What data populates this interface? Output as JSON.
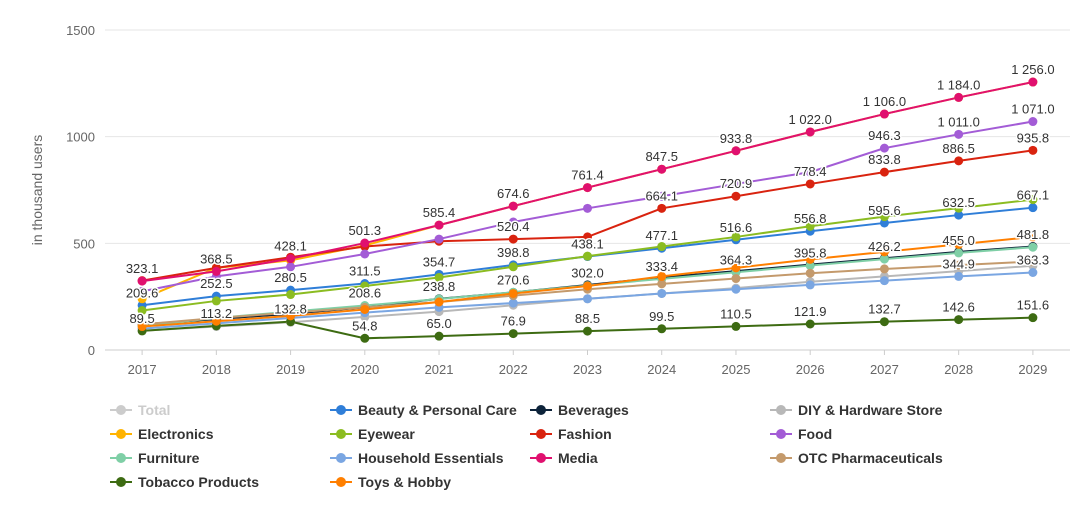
{
  "chart_data": {
    "type": "line",
    "ylabel": "in thousand users",
    "xlabel": "",
    "ylim": [
      0,
      1500
    ],
    "yticks": [
      0,
      500,
      1000,
      1500
    ],
    "x": [
      "2017",
      "2018",
      "2019",
      "2020",
      "2021",
      "2022",
      "2023",
      "2024",
      "2025",
      "2026",
      "2027",
      "2028",
      "2029"
    ],
    "grid": true,
    "legend_position": "bottom",
    "series": [
      {
        "name": "Total",
        "color": "#cccccc",
        "visible": false,
        "labels": false,
        "values": [
          null,
          null,
          null,
          null,
          null,
          null,
          null,
          null,
          null,
          null,
          null,
          null,
          null
        ]
      },
      {
        "name": "Beauty & Personal Care",
        "color": "#2f7ed8",
        "visible": true,
        "labels": false,
        "values": [
          209.6,
          252.5,
          280.5,
          311.5,
          354.7,
          398.8,
          438.1,
          477.1,
          516.6,
          556.8,
          595.6,
          632.5,
          667.1
        ]
      },
      {
        "name": "Beverages",
        "color": "#0d233a",
        "visible": true,
        "labels": false,
        "values": [
          120,
          145,
          170,
          200,
          240,
          270,
          305,
          340,
          370,
          400,
          430,
          460,
          485
        ]
      },
      {
        "name": "DIY & Hardware Store",
        "color": "#b8b8b8",
        "visible": true,
        "labels": false,
        "values": [
          90,
          110,
          130,
          155,
          180,
          210,
          240,
          265,
          290,
          320,
          345,
          370,
          395
        ]
      },
      {
        "name": "Electronics",
        "color": "#ffb300",
        "visible": true,
        "labels": true,
        "values": [
          240,
          385,
          420,
          490,
          585.4,
          674.6,
          761.4,
          847.5,
          933.8,
          1022.0,
          1106.0,
          1184.0,
          1256.0
        ]
      },
      {
        "name": "Eyewear",
        "color": "#8bbc21",
        "visible": true,
        "labels": false,
        "values": [
          185,
          230,
          260,
          300,
          340,
          390,
          440,
          485,
          530,
          580,
          625,
          665,
          705
        ]
      },
      {
        "name": "Fashion",
        "color": "#d9230f",
        "visible": true,
        "labels": false,
        "values": [
          325,
          385,
          435,
          485,
          510,
          520,
          530,
          664.1,
          720.9,
          778.4,
          833.8,
          886.5,
          935.8
        ]
      },
      {
        "name": "Food",
        "color": "#a35cd6",
        "visible": true,
        "labels": true,
        "values": [
          275,
          345,
          390,
          450,
          520,
          600,
          664.1,
          720.9,
          778.4,
          833.8,
          946.3,
          1011.0,
          1071.0
        ]
      },
      {
        "name": "Furniture",
        "color": "#7fcfa6",
        "visible": true,
        "labels": true,
        "values": [
          113.2,
          150,
          180,
          208.6,
          238.8,
          270.6,
          302.0,
          333.4,
          364.3,
          395.8,
          426.2,
          455.0,
          481.8
        ]
      },
      {
        "name": "Household Essentials",
        "color": "#7aa6e2",
        "visible": true,
        "labels": false,
        "values": [
          100,
          125,
          150,
          175,
          200,
          220,
          240,
          265,
          285,
          305,
          325,
          345,
          363.3
        ]
      },
      {
        "name": "Media",
        "color": "#e0106f",
        "visible": true,
        "labels": true,
        "values": [
          323.1,
          368.5,
          428.1,
          501.3,
          585.4,
          674.6,
          761.4,
          847.5,
          933.8,
          1022.0,
          1106.0,
          1184.0,
          1256.0
        ]
      },
      {
        "name": "OTC Pharmaceuticals",
        "color": "#c49a6c",
        "visible": true,
        "labels": false,
        "values": [
          120,
          150,
          175,
          200,
          225,
          255,
          285,
          310,
          335,
          360,
          380,
          398,
          415
        ]
      },
      {
        "name": "Tobacco Products",
        "color": "#3d6b12",
        "visible": true,
        "labels": true,
        "values": [
          89.5,
          113.2,
          132.8,
          54.8,
          65.0,
          76.9,
          88.5,
          99.5,
          110.5,
          121.9,
          132.7,
          142.6,
          151.6
        ]
      },
      {
        "name": "Toys & Hobby",
        "color": "#ff7f00",
        "visible": true,
        "labels": false,
        "values": [
          110,
          135,
          160,
          190,
          225,
          265,
          300,
          345,
          385,
          425,
          460,
          495,
          530
        ]
      }
    ],
    "data_labels": [
      {
        "x": "2017",
        "text": "323.1",
        "y": 323.1,
        "color": "#e0106f"
      },
      {
        "x": "2018",
        "text": "368.5",
        "y": 368.5,
        "color": "#e0106f"
      },
      {
        "x": "2019",
        "text": "428.1",
        "y": 428.1,
        "color": "#e0106f"
      },
      {
        "x": "2020",
        "text": "501.3",
        "y": 501.3,
        "color": "#e0106f"
      },
      {
        "x": "2021",
        "text": "585.4",
        "y": 585.4,
        "color": "#e0106f"
      },
      {
        "x": "2022",
        "text": "674.6",
        "y": 674.6,
        "color": "#e0106f"
      },
      {
        "x": "2023",
        "text": "761.4",
        "y": 761.4,
        "color": "#e0106f"
      },
      {
        "x": "2024",
        "text": "847.5",
        "y": 847.5,
        "color": "#e0106f"
      },
      {
        "x": "2025",
        "text": "933.8",
        "y": 933.8,
        "color": "#e0106f"
      },
      {
        "x": "2026",
        "text": "1 022.0",
        "y": 1022.0,
        "color": "#e0106f"
      },
      {
        "x": "2027",
        "text": "1 106.0",
        "y": 1106.0,
        "color": "#e0106f"
      },
      {
        "x": "2028",
        "text": "1 184.0",
        "y": 1184.0,
        "color": "#e0106f"
      },
      {
        "x": "2029",
        "text": "1 256.0",
        "y": 1256.0,
        "color": "#e0106f"
      },
      {
        "x": "2017",
        "text": "209.6",
        "y": 209.6,
        "color": "#2f7ed8"
      },
      {
        "x": "2018",
        "text": "252.5",
        "y": 252.5,
        "color": "#2f7ed8"
      },
      {
        "x": "2019",
        "text": "280.5",
        "y": 280.5,
        "color": "#2f7ed8"
      },
      {
        "x": "2020",
        "text": "311.5",
        "y": 311.5,
        "color": "#2f7ed8"
      },
      {
        "x": "2021",
        "text": "354.7",
        "y": 354.7,
        "color": "#2f7ed8"
      },
      {
        "x": "2022",
        "text": "398.8",
        "y": 398.8,
        "color": "#2f7ed8"
      },
      {
        "x": "2023",
        "text": "438.1",
        "y": 438.1,
        "color": "#2f7ed8"
      },
      {
        "x": "2024",
        "text": "477.1",
        "y": 477.1,
        "color": "#2f7ed8"
      },
      {
        "x": "2025",
        "text": "516.6",
        "y": 516.6,
        "color": "#2f7ed8"
      },
      {
        "x": "2026",
        "text": "556.8",
        "y": 556.8,
        "color": "#2f7ed8"
      },
      {
        "x": "2027",
        "text": "595.6",
        "y": 595.6,
        "color": "#2f7ed8"
      },
      {
        "x": "2028",
        "text": "632.5",
        "y": 632.5,
        "color": "#2f7ed8"
      },
      {
        "x": "2029",
        "text": "667.1",
        "y": 667.1,
        "color": "#2f7ed8"
      },
      {
        "x": "2022",
        "text": "520.4",
        "y": 520.4,
        "color": "#a35cd6"
      },
      {
        "x": "2024",
        "text": "664.1",
        "y": 664.1,
        "color": "#a35cd6"
      },
      {
        "x": "2025",
        "text": "720.9",
        "y": 720.9,
        "color": "#a35cd6"
      },
      {
        "x": "2026",
        "text": "778.4",
        "y": 778.4,
        "color": "#a35cd6"
      },
      {
        "x": "2027",
        "text": "833.8",
        "y": 833.8,
        "color": "#a35cd6"
      },
      {
        "x": "2027",
        "text": "946.3",
        "y": 946.3,
        "color": "#a35cd6"
      },
      {
        "x": "2028",
        "text": "886.5",
        "y": 886.5,
        "color": "#a35cd6"
      },
      {
        "x": "2028",
        "text": "1 011.0",
        "y": 1011.0,
        "color": "#a35cd6"
      },
      {
        "x": "2029",
        "text": "935.8",
        "y": 935.8,
        "color": "#a35cd6"
      },
      {
        "x": "2029",
        "text": "1 071.0",
        "y": 1071.0,
        "color": "#a35cd6"
      },
      {
        "x": "2017",
        "text": "89.5",
        "y": 89.5,
        "color": "#3d6b12"
      },
      {
        "x": "2018",
        "text": "113.2",
        "y": 113.2,
        "color": "#3d6b12"
      },
      {
        "x": "2019",
        "text": "132.8",
        "y": 132.8,
        "color": "#3d6b12"
      },
      {
        "x": "2020",
        "text": "208.6",
        "y": 208.6,
        "color": "#7fcfa6"
      },
      {
        "x": "2020",
        "text": "54.8",
        "y": 54.8,
        "color": "#3d6b12"
      },
      {
        "x": "2021",
        "text": "238.8",
        "y": 238.8,
        "color": "#7fcfa6"
      },
      {
        "x": "2021",
        "text": "65.0",
        "y": 65.0,
        "color": "#3d6b12"
      },
      {
        "x": "2022",
        "text": "270.6",
        "y": 270.6,
        "color": "#7fcfa6"
      },
      {
        "x": "2022",
        "text": "76.9",
        "y": 76.9,
        "color": "#3d6b12"
      },
      {
        "x": "2023",
        "text": "302.0",
        "y": 302.0,
        "color": "#7fcfa6"
      },
      {
        "x": "2023",
        "text": "88.5",
        "y": 88.5,
        "color": "#3d6b12"
      },
      {
        "x": "2024",
        "text": "333.4",
        "y": 333.4,
        "color": "#7fcfa6"
      },
      {
        "x": "2024",
        "text": "99.5",
        "y": 99.5,
        "color": "#3d6b12"
      },
      {
        "x": "2025",
        "text": "364.3",
        "y": 364.3,
        "color": "#7fcfa6"
      },
      {
        "x": "2025",
        "text": "110.5",
        "y": 110.5,
        "color": "#3d6b12"
      },
      {
        "x": "2026",
        "text": "395.8",
        "y": 395.8,
        "color": "#7fcfa6"
      },
      {
        "x": "2026",
        "text": "121.9",
        "y": 121.9,
        "color": "#3d6b12"
      },
      {
        "x": "2027",
        "text": "426.2",
        "y": 426.2,
        "color": "#7fcfa6"
      },
      {
        "x": "2027",
        "text": "132.7",
        "y": 132.7,
        "color": "#3d6b12"
      },
      {
        "x": "2028",
        "text": "455.0",
        "y": 455.0,
        "color": "#7fcfa6"
      },
      {
        "x": "2028",
        "text": "344.9",
        "y": 344.9,
        "color": "#c49a6c"
      },
      {
        "x": "2028",
        "text": "142.6",
        "y": 142.6,
        "color": "#3d6b12"
      },
      {
        "x": "2029",
        "text": "481.8",
        "y": 481.8,
        "color": "#7fcfa6"
      },
      {
        "x": "2029",
        "text": "363.3",
        "y": 363.3,
        "color": "#c49a6c"
      },
      {
        "x": "2029",
        "text": "151.6",
        "y": 151.6,
        "color": "#3d6b12"
      }
    ]
  }
}
